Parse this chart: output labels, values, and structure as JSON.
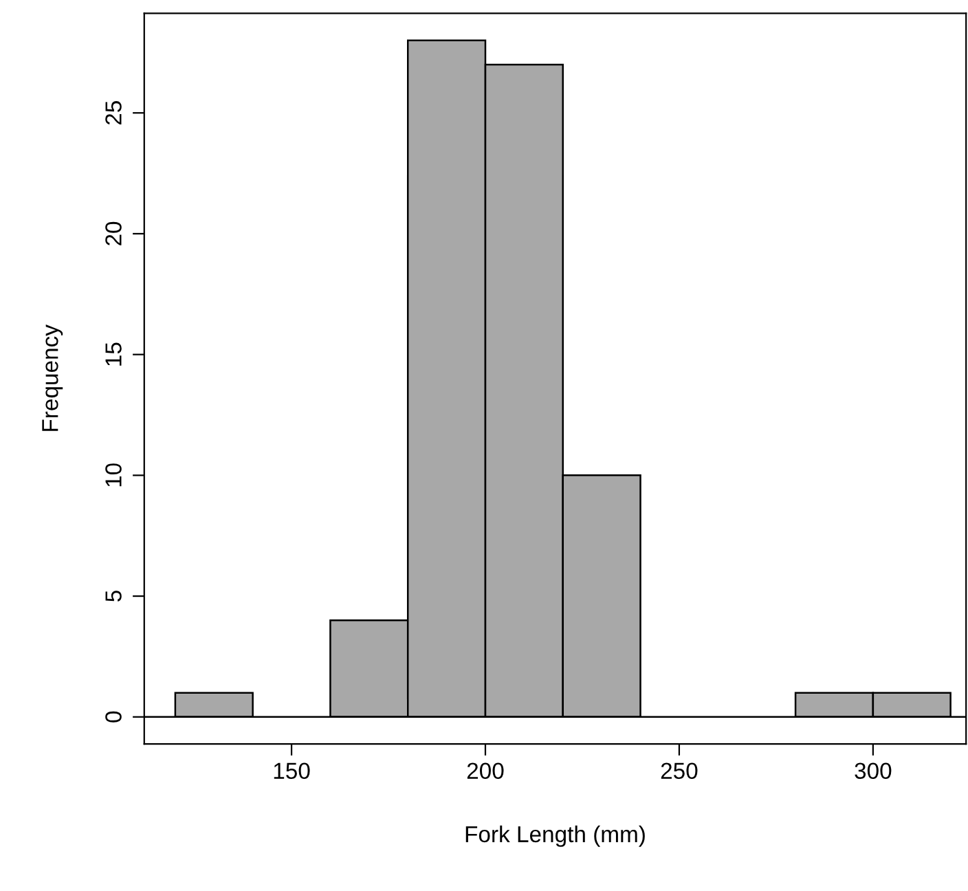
{
  "chart_data": {
    "type": "histogram",
    "xlabel": "Fork Length (mm)",
    "ylabel": "Frequency",
    "bins": [
      120,
      140,
      160,
      180,
      200,
      220,
      240,
      260,
      280,
      300,
      320
    ],
    "values": [
      1,
      0,
      4,
      28,
      27,
      10,
      0,
      0,
      1,
      1
    ],
    "color": "#a8a8a8",
    "xlim": [
      112,
      324
    ],
    "ylim": [
      -1.12,
      29.12
    ],
    "xticks": [
      150,
      200,
      250,
      300
    ],
    "yticks": [
      0,
      5,
      10,
      15,
      20,
      25
    ],
    "ref_lines": [
      {
        "axis": "y",
        "value": 0,
        "color": "#000000"
      }
    ],
    "grid": false
  }
}
